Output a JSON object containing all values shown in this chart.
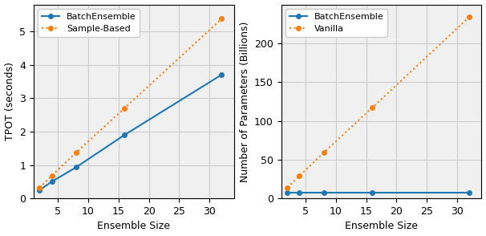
{
  "plot1": {
    "xlabel": "Ensemble Size",
    "ylabel": "TPOT (seconds)",
    "x": [
      2,
      4,
      8,
      16,
      32
    ],
    "batch_ensemble_y": [
      0.25,
      0.5,
      0.93,
      1.9,
      3.7
    ],
    "sample_based_y": [
      0.32,
      0.68,
      1.37,
      2.7,
      5.37
    ],
    "batch_label": "BatchEnsemble",
    "sample_label": "Sample-Based",
    "ylim": [
      0,
      5.8
    ],
    "xlim": [
      1,
      34
    ],
    "xticks": [
      5,
      10,
      15,
      20,
      25,
      30
    ],
    "yticks": [
      0,
      1,
      2,
      3,
      4,
      5
    ]
  },
  "plot2": {
    "xlabel": "Ensemble Size",
    "ylabel": "Number of Parameters (Billions)",
    "x": [
      2,
      4,
      8,
      16,
      32
    ],
    "batch_ensemble_y": [
      7.0,
      7.0,
      7.0,
      7.0,
      7.0
    ],
    "vanilla_y": [
      14.0,
      29.0,
      59.0,
      117.0,
      234.0
    ],
    "batch_label": "BatchEnsemble",
    "vanilla_label": "Vanilla",
    "ylim": [
      0,
      250
    ],
    "xlim": [
      1,
      34
    ],
    "xticks": [
      5,
      10,
      15,
      20,
      25,
      30
    ],
    "yticks": [
      0,
      50,
      100,
      150,
      200
    ]
  },
  "batch_color": "#1f77b4",
  "orange_color": "#ff7f0e",
  "grid_color": "#cccccc",
  "bg_color": "#f0f0f0",
  "legend_fontsize": 8,
  "axis_fontsize": 9,
  "tick_fontsize": 9,
  "linewidth": 1.5,
  "markersize": 4
}
